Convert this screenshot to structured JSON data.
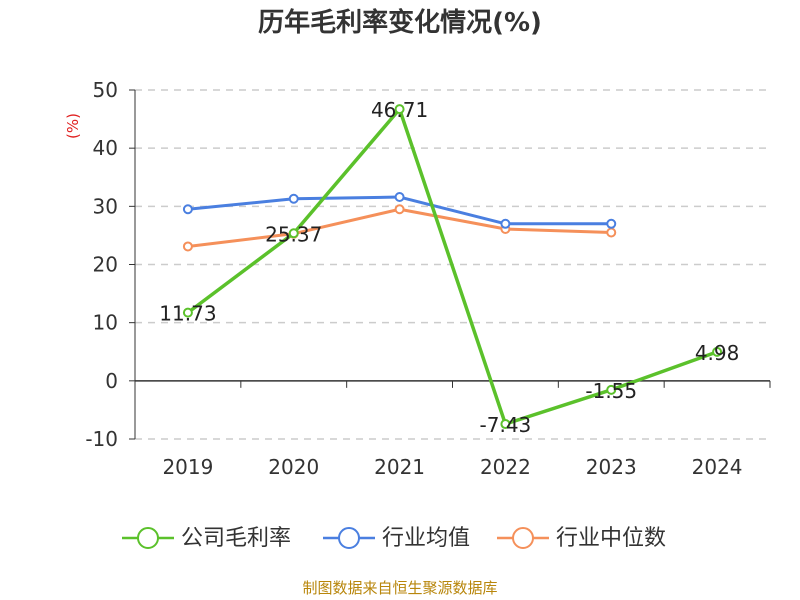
{
  "chart_data": {
    "type": "line",
    "title": "历年毛利率变化情况(%)",
    "ylabel": "(%)",
    "xlabel": "",
    "categories": [
      "2019",
      "2020",
      "2021",
      "2022",
      "2023",
      "2024"
    ],
    "ylim": [
      -10,
      50
    ],
    "yticks": [
      -10,
      0,
      10,
      20,
      30,
      40,
      50
    ],
    "grid": true,
    "legend_position": "bottom",
    "series": [
      {
        "name": "公司毛利率",
        "color": "#5bc12b",
        "values": [
          11.73,
          25.37,
          46.71,
          -7.43,
          -1.55,
          4.98
        ],
        "labels": [
          "11.73",
          "25.37",
          "46.71",
          "-7.43",
          "-1.55",
          "4.98"
        ]
      },
      {
        "name": "行业均值",
        "color": "#4a7fe0",
        "values": [
          29.5,
          31.3,
          31.6,
          27.0,
          27.0,
          null
        ]
      },
      {
        "name": "行业中位数",
        "color": "#f5905a",
        "values": [
          23.1,
          25.3,
          29.5,
          26.1,
          25.5,
          null
        ]
      }
    ]
  },
  "source": "制图数据来自恒生聚源数据库"
}
